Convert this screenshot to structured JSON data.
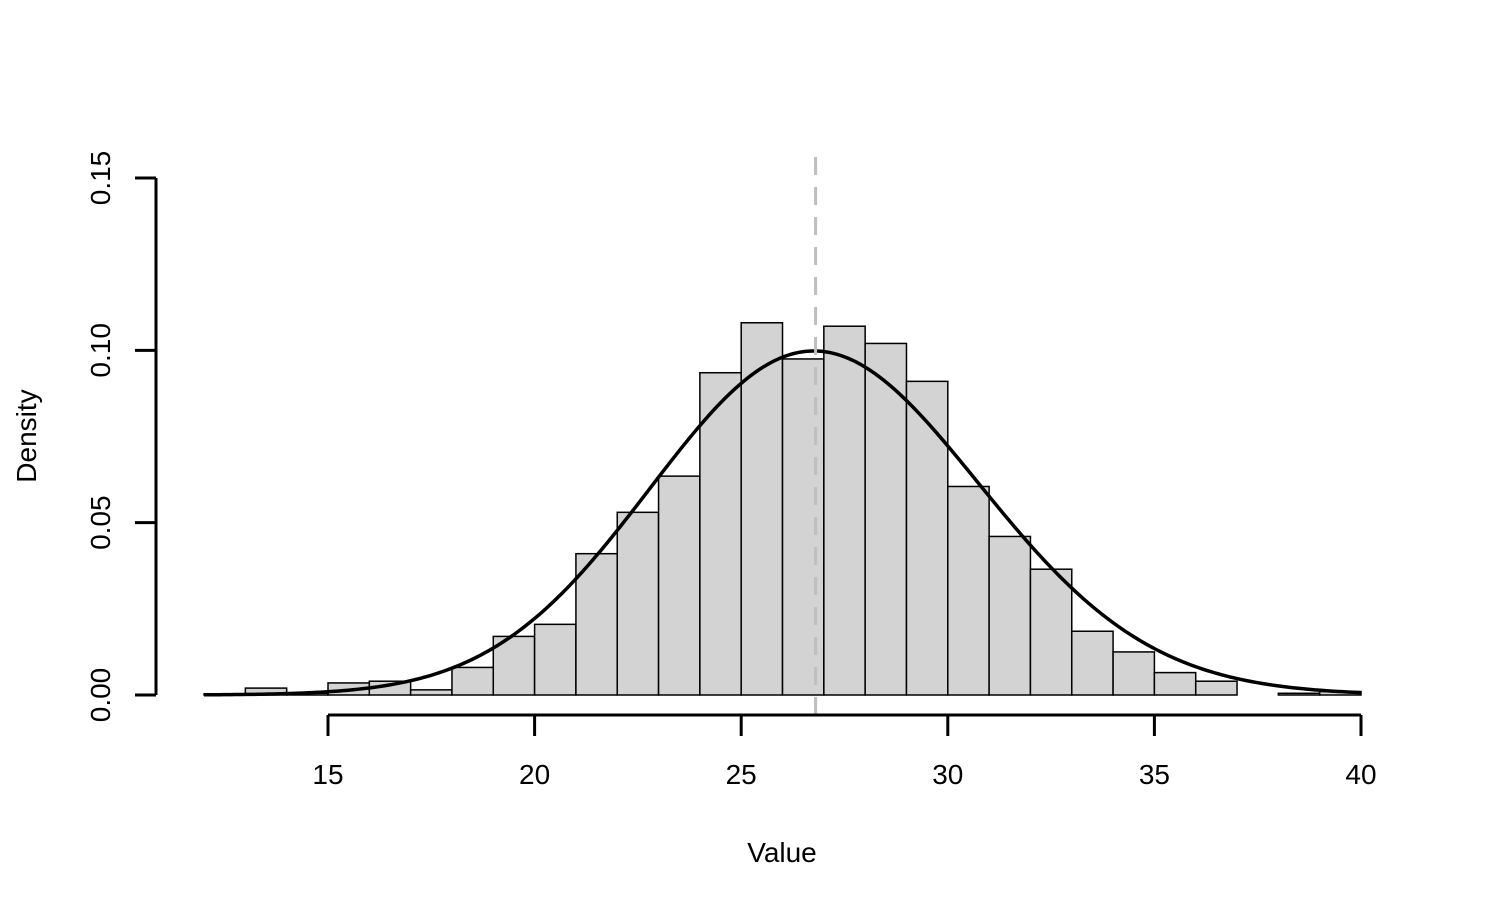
{
  "chart_data": {
    "type": "bar",
    "subtype": "histogram",
    "title": "",
    "xlabel": "Value",
    "ylabel": "Density",
    "xlim": [
      15,
      40
    ],
    "ylim": [
      0,
      0.15
    ],
    "x_ticks": [
      15,
      20,
      25,
      30,
      35,
      40
    ],
    "x_tick_labels": [
      "15",
      "20",
      "25",
      "30",
      "35",
      "40"
    ],
    "y_ticks": [
      0,
      0.05,
      0.1,
      0.15
    ],
    "y_tick_labels": [
      "0.00",
      "0.05",
      "0.10",
      "0.15"
    ],
    "grid": false,
    "bar_fill": "#d3d3d3",
    "bar_stroke": "#000000",
    "bins": [
      {
        "x0": 12,
        "x1": 13,
        "density": 0.0003
      },
      {
        "x0": 13,
        "x1": 14,
        "density": 0.002
      },
      {
        "x0": 14,
        "x1": 15,
        "density": 0.0005
      },
      {
        "x0": 15,
        "x1": 16,
        "density": 0.0035
      },
      {
        "x0": 16,
        "x1": 17,
        "density": 0.004
      },
      {
        "x0": 17,
        "x1": 18,
        "density": 0.0015
      },
      {
        "x0": 18,
        "x1": 19,
        "density": 0.008
      },
      {
        "x0": 19,
        "x1": 20,
        "density": 0.017
      },
      {
        "x0": 20,
        "x1": 21,
        "density": 0.0205
      },
      {
        "x0": 21,
        "x1": 22,
        "density": 0.041
      },
      {
        "x0": 22,
        "x1": 23,
        "density": 0.053
      },
      {
        "x0": 23,
        "x1": 24,
        "density": 0.0635
      },
      {
        "x0": 24,
        "x1": 25,
        "density": 0.0935
      },
      {
        "x0": 25,
        "x1": 26,
        "density": 0.108
      },
      {
        "x0": 26,
        "x1": 27,
        "density": 0.0975
      },
      {
        "x0": 27,
        "x1": 28,
        "density": 0.107
      },
      {
        "x0": 28,
        "x1": 29,
        "density": 0.102
      },
      {
        "x0": 29,
        "x1": 30,
        "density": 0.091
      },
      {
        "x0": 30,
        "x1": 31,
        "density": 0.0605
      },
      {
        "x0": 31,
        "x1": 32,
        "density": 0.046
      },
      {
        "x0": 32,
        "x1": 33,
        "density": 0.0365
      },
      {
        "x0": 33,
        "x1": 34,
        "density": 0.0185
      },
      {
        "x0": 34,
        "x1": 35,
        "density": 0.0125
      },
      {
        "x0": 35,
        "x1": 36,
        "density": 0.0065
      },
      {
        "x0": 36,
        "x1": 37,
        "density": 0.004
      },
      {
        "x0": 37,
        "x1": 38,
        "density": 0.0
      },
      {
        "x0": 38,
        "x1": 39,
        "density": 0.0005
      },
      {
        "x0": 39,
        "x1": 40,
        "density": 0.001
      }
    ],
    "density_curve": {
      "type": "skew-normal",
      "location": 24.6,
      "scale": 4.64,
      "shape": 0.81,
      "x_range": [
        12,
        40
      ],
      "color": "#000000"
    },
    "reference_line": {
      "x": 26.8,
      "style": "dashed",
      "color": "#bebebe"
    }
  }
}
